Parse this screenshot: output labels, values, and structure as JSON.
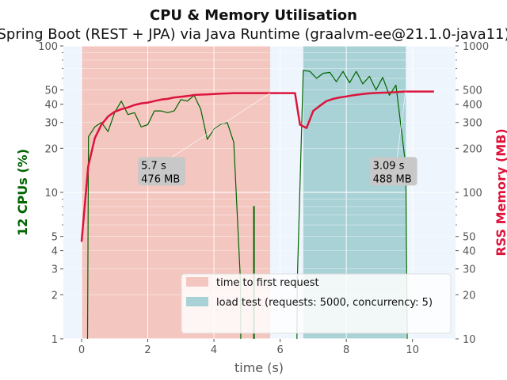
{
  "chart_data": {
    "type": "line",
    "title": "CPU & Memory Utilisation",
    "subtitle": "Spring Boot (REST + JPA) via Java Runtime (graalvm-ee@21.1.0-java11)",
    "xlabel": "time (s)",
    "ylabel_left": "12 CPUs (%)",
    "ylabel_right": "RSS Memory (MB)",
    "xlim": [
      -0.55,
      11.3
    ],
    "ylim_left": [
      1,
      100
    ],
    "ylim_right": [
      10,
      1000
    ],
    "yscale": "log",
    "x_ticks": [
      "0",
      "2",
      "4",
      "6",
      "8",
      "10"
    ],
    "y_left_ticks": [
      "1",
      "2",
      "3",
      "4",
      "5",
      "10",
      "20",
      "30",
      "40",
      "50",
      "100"
    ],
    "y_right_ticks": [
      "10",
      "20",
      "30",
      "40",
      "50",
      "100",
      "200",
      "300",
      "400",
      "500",
      "1000"
    ],
    "colors": {
      "background": "#eef5fd",
      "cpu": "#006400",
      "memory": "#dc143c",
      "first_request_span": "#f4c6c0",
      "load_test_span": "#a9d2d6"
    },
    "spans": [
      {
        "name": "time to first request",
        "x_start": 0.0,
        "x_end": 5.7,
        "color": "#f4c6c0"
      },
      {
        "name": "load test (requests: 5000, concurrency: 5)",
        "x_start": 6.7,
        "x_end": 9.8,
        "color": "#a9d2d6"
      }
    ],
    "annotations": [
      {
        "text": [
          "5.7 s",
          "476 MB"
        ],
        "x": 5.7,
        "y": 476,
        "label_x": 1.8,
        "label_y": 12
      },
      {
        "text": [
          "3.09 s",
          "488 MB"
        ],
        "x": 9.79,
        "y": 488,
        "label_x": 8.8,
        "label_y": 12
      }
    ],
    "legend": {
      "placement": "lower right",
      "entries": [
        "time to first request",
        "load test (requests: 5000, concurrency: 5)"
      ]
    },
    "series": [
      {
        "name": "CPU",
        "axis": "left",
        "color": "#006400",
        "segments": [
          [
            [
              0.18,
              0.5
            ],
            [
              0.18,
              1.0
            ],
            [
              0.21,
              24
            ],
            [
              0.4,
              28
            ],
            [
              0.6,
              30
            ],
            [
              0.8,
              26
            ],
            [
              1.0,
              35
            ],
            [
              1.2,
              42
            ],
            [
              1.4,
              34
            ],
            [
              1.6,
              35
            ],
            [
              1.8,
              28
            ],
            [
              2.0,
              29
            ],
            [
              2.2,
              36
            ],
            [
              2.4,
              36
            ],
            [
              2.6,
              35
            ],
            [
              2.8,
              36
            ],
            [
              3.0,
              43
            ],
            [
              3.2,
              42
            ],
            [
              3.4,
              46
            ],
            [
              3.6,
              37
            ],
            [
              3.8,
              23
            ],
            [
              4.0,
              27
            ],
            [
              4.2,
              29
            ],
            [
              4.4,
              30
            ],
            [
              4.6,
              22
            ],
            [
              4.8,
              2.5
            ],
            [
              4.82,
              0.5
            ]
          ],
          [
            [
              5.2,
              0.5
            ],
            [
              5.2,
              8
            ],
            [
              5.22,
              8
            ],
            [
              5.22,
              0.5
            ]
          ],
          [
            [
              6.5,
              0.5
            ],
            [
              6.52,
              2.5
            ],
            [
              6.7,
              68
            ],
            [
              6.9,
              67
            ],
            [
              7.1,
              60
            ],
            [
              7.3,
              65
            ],
            [
              7.5,
              66
            ],
            [
              7.7,
              57
            ],
            [
              7.9,
              67
            ],
            [
              8.1,
              56
            ],
            [
              8.3,
              67
            ],
            [
              8.5,
              55
            ],
            [
              8.7,
              62
            ],
            [
              8.9,
              50
            ],
            [
              9.1,
              61
            ],
            [
              9.3,
              46
            ],
            [
              9.5,
              54
            ],
            [
              9.8,
              15
            ],
            [
              9.85,
              0.5
            ]
          ]
        ]
      },
      {
        "name": "RSS Memory",
        "axis": "right",
        "color": "#dc143c",
        "points": [
          [
            0.0,
            46
          ],
          [
            0.2,
            150
          ],
          [
            0.4,
            235
          ],
          [
            0.6,
            290
          ],
          [
            0.8,
            330
          ],
          [
            1.0,
            355
          ],
          [
            1.2,
            370
          ],
          [
            1.4,
            380
          ],
          [
            1.6,
            395
          ],
          [
            1.8,
            405
          ],
          [
            2.0,
            410
          ],
          [
            2.2,
            420
          ],
          [
            2.4,
            430
          ],
          [
            2.6,
            435
          ],
          [
            2.8,
            445
          ],
          [
            3.0,
            450
          ],
          [
            3.2,
            455
          ],
          [
            3.4,
            462
          ],
          [
            3.6,
            465
          ],
          [
            3.8,
            467
          ],
          [
            4.0,
            470
          ],
          [
            4.2,
            472
          ],
          [
            4.4,
            474
          ],
          [
            4.6,
            476
          ],
          [
            4.8,
            476
          ],
          [
            5.0,
            476
          ],
          [
            5.2,
            476
          ],
          [
            5.4,
            476
          ],
          [
            5.6,
            476
          ],
          [
            5.7,
            476
          ],
          [
            6.0,
            476
          ],
          [
            6.3,
            476
          ],
          [
            6.45,
            476
          ],
          [
            6.6,
            290
          ],
          [
            6.8,
            275
          ],
          [
            7.0,
            360
          ],
          [
            7.2,
            390
          ],
          [
            7.4,
            420
          ],
          [
            7.6,
            435
          ],
          [
            7.8,
            445
          ],
          [
            8.0,
            452
          ],
          [
            8.2,
            460
          ],
          [
            8.4,
            466
          ],
          [
            8.6,
            472
          ],
          [
            8.8,
            476
          ],
          [
            9.0,
            478
          ],
          [
            9.2,
            480
          ],
          [
            9.4,
            482
          ],
          [
            9.6,
            485
          ],
          [
            9.8,
            488
          ],
          [
            10.0,
            488
          ],
          [
            10.3,
            488
          ],
          [
            10.65,
            488
          ]
        ]
      }
    ]
  }
}
